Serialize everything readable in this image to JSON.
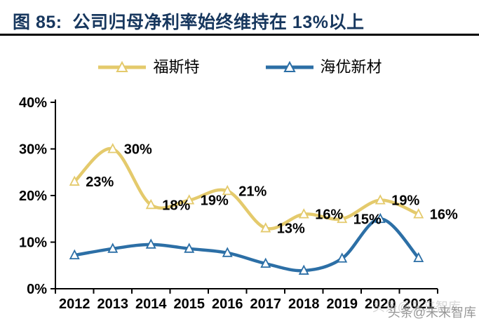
{
  "figure": {
    "title": "图 85:  公司归母净利率始终维持在 13%以上",
    "title_color": "#17375E",
    "watermark": "头条@未来智库"
  },
  "legend": {
    "items": [
      {
        "label": "福斯特",
        "color": "#E4CA6C"
      },
      {
        "label": "海优新材",
        "color": "#2C6FA6"
      }
    ]
  },
  "chart_data": {
    "type": "line",
    "smooth": true,
    "grid": false,
    "legend_position": "top",
    "categories": [
      "2012",
      "2013",
      "2014",
      "2015",
      "2016",
      "2017",
      "2018",
      "2019",
      "2020",
      "2021"
    ],
    "series": [
      {
        "name": "福斯特",
        "color": "#E4CA6C",
        "marker": "triangle",
        "values": [
          23,
          30,
          18,
          19,
          21,
          13,
          16,
          15,
          19,
          16
        ],
        "labels": [
          "23%",
          "30%",
          "18%",
          "19%",
          "21%",
          "13%",
          "16%",
          "15%",
          "19%",
          "16%"
        ]
      },
      {
        "name": "海优新材",
        "color": "#2C6FA6",
        "marker": "triangle",
        "values": [
          7.2,
          8.6,
          9.5,
          8.6,
          7.7,
          5.4,
          3.9,
          6.5,
          15.0,
          6.6
        ],
        "labels": []
      }
    ],
    "xlabel": "",
    "ylabel": "",
    "ylim": [
      0,
      40
    ],
    "y_ticks": [
      0,
      10,
      20,
      30,
      40
    ],
    "y_tick_labels": [
      "0%",
      "10%",
      "20%",
      "30%",
      "40%"
    ],
    "axis_color": "#000000",
    "label_color": "#000000"
  }
}
